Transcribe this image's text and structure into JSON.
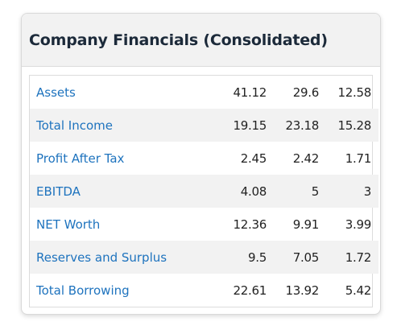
{
  "card": {
    "title": "Company Financials (Consolidated)"
  },
  "rows": [
    {
      "label": "Assets",
      "values": [
        "41.12",
        "29.6",
        "12.58"
      ]
    },
    {
      "label": "Total Income",
      "values": [
        "19.15",
        "23.18",
        "15.28"
      ]
    },
    {
      "label": "Profit After Tax",
      "values": [
        "2.45",
        "2.42",
        "1.71"
      ]
    },
    {
      "label": "EBITDA",
      "values": [
        "4.08",
        "5",
        "3"
      ]
    },
    {
      "label": "NET Worth",
      "values": [
        "12.36",
        "9.91",
        "3.99"
      ]
    },
    {
      "label": "Reserves and Surplus",
      "values": [
        "9.5",
        "7.05",
        "1.72"
      ]
    },
    {
      "label": "Total Borrowing",
      "values": [
        "22.61",
        "13.92",
        "5.42"
      ]
    }
  ],
  "colors": {
    "link": "#1e73be",
    "stripe": "#f2f2f2",
    "title": "#1c2a3a"
  }
}
